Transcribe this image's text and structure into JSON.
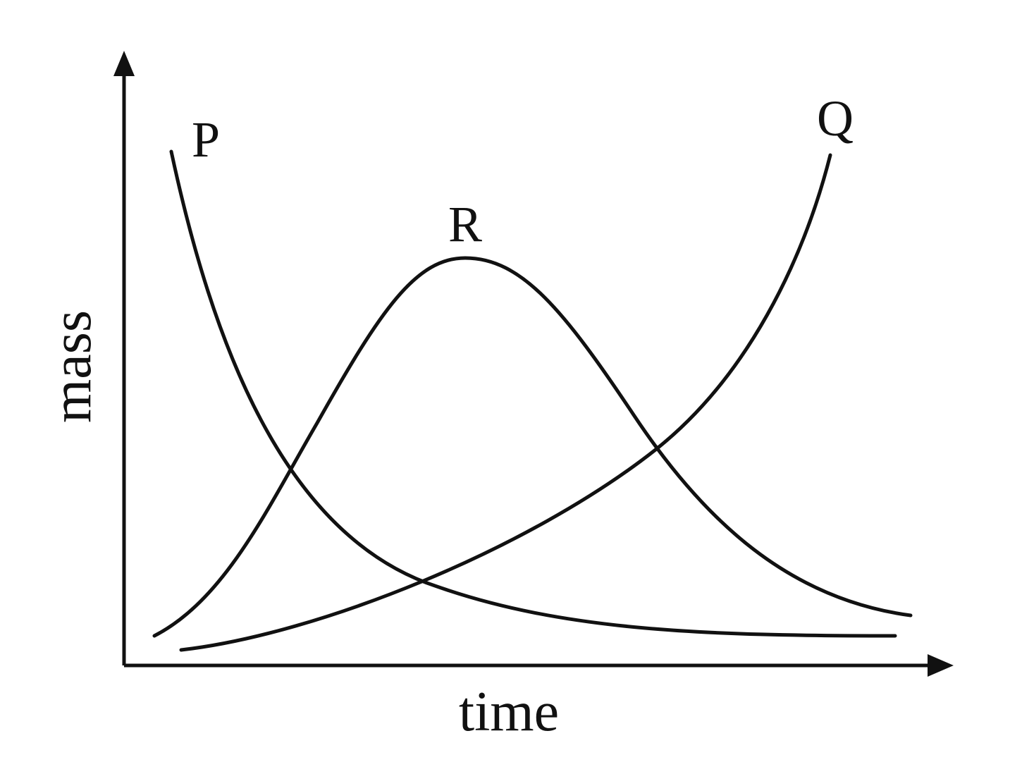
{
  "axes": {
    "y_label": "mass",
    "x_label": "time"
  },
  "curves": [
    {
      "label": "P"
    },
    {
      "label": "Q"
    },
    {
      "label": "R"
    }
  ]
}
